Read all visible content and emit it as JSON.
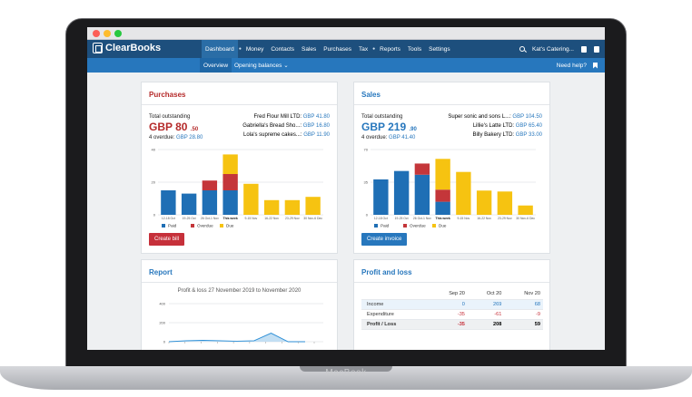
{
  "device": {
    "brand": "MacBook"
  },
  "nav": {
    "logo": "ClearBooks",
    "menu": [
      "Dashboard",
      "Money",
      "Contacts",
      "Sales",
      "Purchases",
      "Tax",
      "Reports",
      "Tools",
      "Settings"
    ],
    "account": "Kat's Catering...",
    "subnav": {
      "overview": "Overview",
      "opening_balances": "Opening balances ⌄",
      "need_help": "Need help?"
    }
  },
  "purchases": {
    "title": "Purchases",
    "total_label": "Total outstanding",
    "total_main": "GBP 80",
    "total_cents": ".50",
    "overdue_label": "4 overdue:",
    "overdue_value": "GBP 28.80",
    "suppliers": [
      {
        "name": "Fred Flour Mill LTD:",
        "amount": "GBP 41.80"
      },
      {
        "name": "Gabriella's Bread Sho...:",
        "amount": "GBP 16.80"
      },
      {
        "name": "Lola's supreme cakes...:",
        "amount": "GBP 11.90"
      }
    ],
    "button": "Create bill"
  },
  "sales": {
    "title": "Sales",
    "total_label": "Total outstanding",
    "total_main": "GBP 219",
    "total_cents": ".90",
    "overdue_label": "4 overdue:",
    "overdue_value": "GBP 41.40",
    "customers": [
      {
        "name": "Super sonic and sons L...:",
        "amount": "GBP 104.50"
      },
      {
        "name": "Lillie's Latte LTD:",
        "amount": "GBP 65.40"
      },
      {
        "name": "Billy Bakery LTD:",
        "amount": "GBP 33.00"
      }
    ],
    "button": "Create invoice"
  },
  "chart_data": [
    {
      "type": "bar",
      "stacked": true,
      "categories": [
        "12-18 Oct",
        "19-25 Oct",
        "26 Oct-1 Nov",
        "This week",
        "9-15 Nov",
        "16-22 Nov",
        "23-29 Nov",
        "30 Nov-6 Dec"
      ],
      "series": [
        {
          "name": "Paid",
          "color": "#1f6fb5",
          "values": [
            15,
            13,
            15,
            15,
            0,
            0,
            0,
            0
          ]
        },
        {
          "name": "Overdue",
          "color": "#c4363a",
          "values": [
            0,
            0,
            6,
            10,
            0,
            0,
            0,
            0
          ]
        },
        {
          "name": "Due",
          "color": "#f6c311",
          "values": [
            0,
            0,
            0,
            12,
            19,
            9,
            9,
            11
          ]
        }
      ],
      "yticks": [
        0,
        20,
        40
      ],
      "ylim": [
        0,
        40
      ],
      "grid": true,
      "legend_position": "bottom"
    },
    {
      "type": "bar",
      "stacked": true,
      "categories": [
        "12-18 Oct",
        "19-25 Oct",
        "26 Oct-1 Nov",
        "This week",
        "9-15 Nov",
        "16-22 Nov",
        "23-29 Nov",
        "30 Nov-6 Dec"
      ],
      "series": [
        {
          "name": "Paid",
          "color": "#1f6fb5",
          "values": [
            38,
            47,
            43,
            0,
            0,
            0,
            0,
            0
          ]
        },
        {
          "name": "Overdue",
          "color": "#c4363a",
          "values": [
            0,
            0,
            12,
            13,
            0,
            0,
            0,
            0
          ]
        },
        {
          "name": "Due",
          "color": "#f6c311",
          "values": [
            0,
            0,
            0,
            33,
            46,
            26,
            25,
            10
          ]
        }
      ],
      "series_extra": {
        "this_week_paid": 14
      },
      "yticks": [
        0,
        35,
        70
      ],
      "ylim": [
        0,
        70
      ],
      "grid": true,
      "legend_position": "bottom"
    },
    {
      "type": "area",
      "x_ticks_count": 10,
      "values": [
        0,
        10,
        15,
        10,
        5,
        10,
        90,
        0,
        0
      ],
      "yticks": [
        0,
        200,
        400
      ],
      "ylim": [
        0,
        400
      ],
      "grid": true
    }
  ],
  "report": {
    "title": "Report",
    "subtitle": "Profit & loss",
    "period": "27 November 2019 to November 2020"
  },
  "profit_loss": {
    "title": "Profit and loss",
    "columns": [
      "Sep 20",
      "Oct 20",
      "Nov 20"
    ],
    "rows": [
      {
        "label": "Income",
        "values": [
          "0",
          "269",
          "68"
        ]
      },
      {
        "label": "Expenditure",
        "values": [
          "-35",
          "-61",
          "-9"
        ]
      },
      {
        "label": "Profit / Loss",
        "values": [
          "-35",
          "208",
          "59"
        ]
      }
    ]
  }
}
